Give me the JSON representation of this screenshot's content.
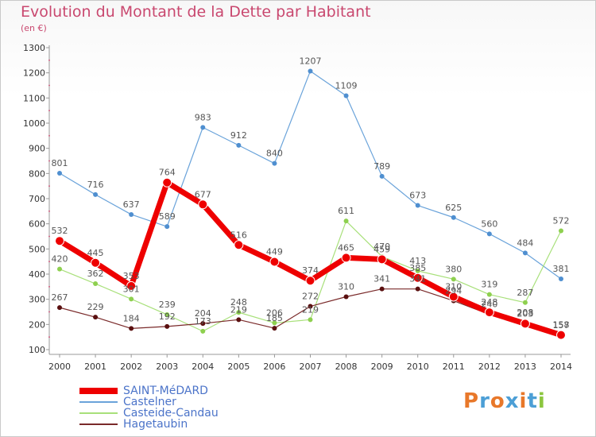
{
  "title": "Evolution du Montant de la Dette par Habitant",
  "unit_label": "(en €)",
  "logo": {
    "letters": [
      "P",
      "r",
      "o",
      "x",
      "i",
      "t",
      "i"
    ],
    "colors": [
      "#e8782a",
      "#4c9fd6",
      "#e8782a",
      "#4c9fd6",
      "#e8782a",
      "#4c9fd6",
      "#8cc63f"
    ]
  },
  "chart_data": {
    "type": "line",
    "title": "Evolution du Montant de la Dette par Habitant",
    "ylabel": "(en €)",
    "ylim": [
      100,
      1300
    ],
    "yticks": [
      100,
      200,
      300,
      400,
      500,
      600,
      700,
      800,
      900,
      1000,
      1100,
      1200,
      1300
    ],
    "x": [
      "2000",
      "2001",
      "2002",
      "2003",
      "2004",
      "2005",
      "2006",
      "2007",
      "2008",
      "2009",
      "2010",
      "2011",
      "2012",
      "2013",
      "2014"
    ],
    "grid": false,
    "legend_position": "bottom-left",
    "series": [
      {
        "name": "SAINT-MéDARD",
        "color": "#ee0000",
        "values": [
          532,
          445,
          353,
          764,
          677,
          516,
          449,
          374,
          465,
          459,
          385,
          310,
          248,
          203,
          158
        ]
      },
      {
        "name": "Castelner",
        "color": "#5f9ad6",
        "values": [
          801,
          716,
          637,
          589,
          983,
          912,
          840,
          1207,
          1109,
          789,
          673,
          625,
          560,
          484,
          381
        ]
      },
      {
        "name": "Casteide-Candau",
        "color": "#99dd66",
        "values": [
          420,
          362,
          301,
          239,
          173,
          248,
          206,
          219,
          611,
          470,
          413,
          380,
          319,
          287,
          572
        ]
      },
      {
        "name": "Hagetaubin",
        "color": "#7a2a2a",
        "values": [
          267,
          229,
          184,
          192,
          204,
          219,
          185,
          272,
          310,
          341,
          341,
          294,
          240,
          208,
          157
        ]
      }
    ]
  }
}
